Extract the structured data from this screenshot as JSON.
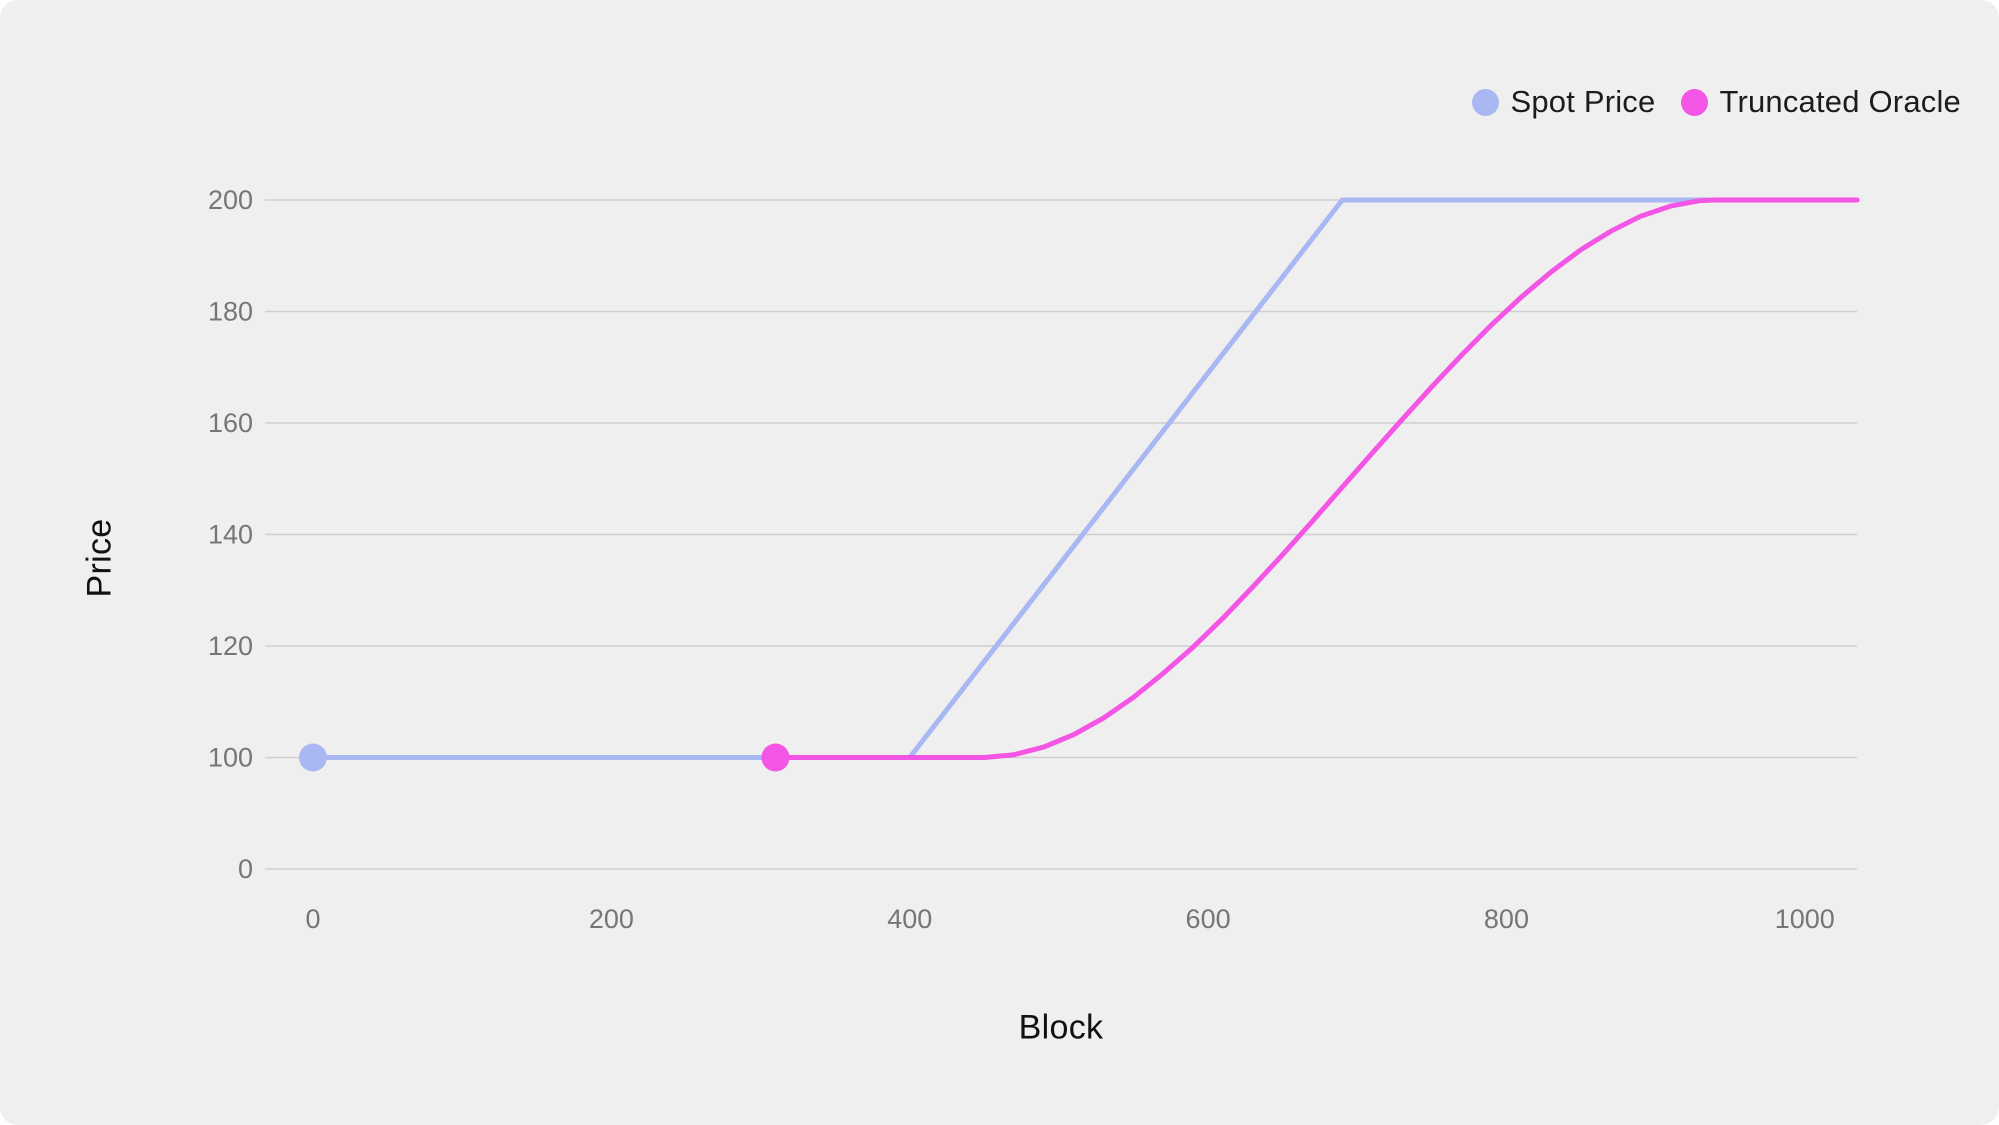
{
  "colors": {
    "panel_bg": "#efefef",
    "grid_line": "#cfcfcf",
    "tick_text": "#767676",
    "axis_label_text": "#111111",
    "legend_text": "#1c1c1c",
    "spot_price": "#a9b7f2",
    "truncated_oracle": "#f355e4"
  },
  "legend": {
    "items": [
      {
        "label": "Spot Price",
        "color": "#a9b7f2"
      },
      {
        "label": "Truncated Oracle",
        "color": "#f355e4"
      }
    ]
  },
  "chart_data": {
    "type": "line",
    "xlabel": "Block",
    "ylabel": "Price",
    "grid": "horizontal",
    "legend_position": "top-right",
    "x_ticks": [
      0,
      200,
      400,
      600,
      800,
      1000
    ],
    "y_ticks": [
      200,
      180,
      160,
      140,
      120,
      100,
      0
    ],
    "y_axis_note": "ticks evenly spaced; segment 0-100 compressed to one step",
    "xlim": [
      0,
      1035
    ],
    "series": [
      {
        "name": "Spot Price",
        "color": "#a9b7f2",
        "start_dot": {
          "x": 0,
          "y": 100
        },
        "points": [
          [
            0,
            100
          ],
          [
            400,
            100
          ],
          [
            690,
            200
          ],
          [
            1035,
            200
          ]
        ]
      },
      {
        "name": "Truncated Oracle",
        "color": "#f355e4",
        "start_dot": {
          "x": 310,
          "y": 100
        },
        "points": [
          [
            310,
            100
          ],
          [
            450,
            100
          ],
          [
            470,
            100.5
          ],
          [
            490,
            101.9
          ],
          [
            510,
            104.1
          ],
          [
            530,
            107.1
          ],
          [
            550,
            110.8
          ],
          [
            570,
            115.1
          ],
          [
            590,
            119.8
          ],
          [
            610,
            125
          ],
          [
            630,
            130.6
          ],
          [
            650,
            136.4
          ],
          [
            670,
            142.4
          ],
          [
            690,
            148.5
          ],
          [
            710,
            154.6
          ],
          [
            730,
            160.6
          ],
          [
            750,
            166.5
          ],
          [
            770,
            172.2
          ],
          [
            790,
            177.6
          ],
          [
            810,
            182.6
          ],
          [
            830,
            187.1
          ],
          [
            850,
            191.1
          ],
          [
            870,
            194.4
          ],
          [
            890,
            197.1
          ],
          [
            910,
            198.9
          ],
          [
            930,
            199.9
          ],
          [
            940,
            200
          ],
          [
            1035,
            200
          ]
        ]
      }
    ]
  }
}
